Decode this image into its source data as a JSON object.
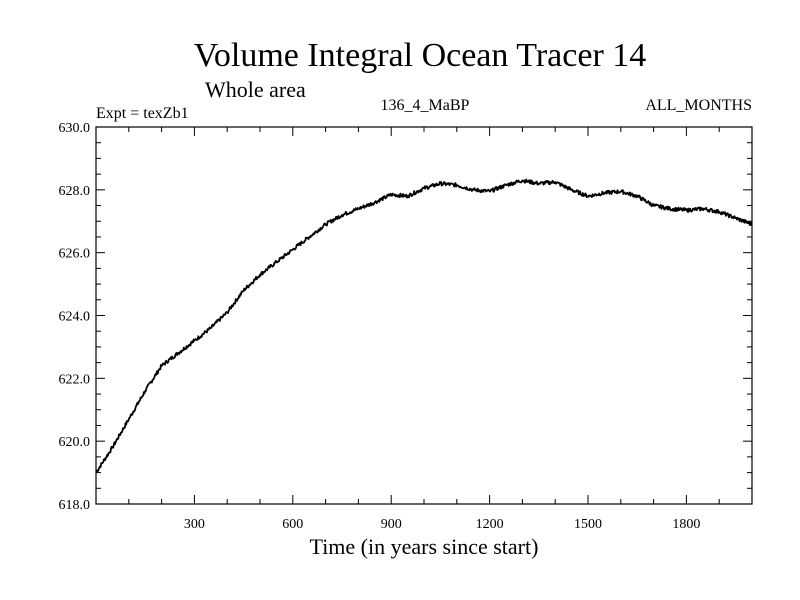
{
  "chart_data": {
    "type": "line",
    "title": "Volume Integral Ocean Tracer 14",
    "subtitle": "Whole area",
    "annotations": {
      "left": "Expt = texZb1",
      "center": "136_4_MaBP",
      "right": "ALL_MONTHS"
    },
    "xlabel": "Time (in years since start)",
    "ylabel": "",
    "xlim": [
      0,
      2000
    ],
    "ylim": [
      618.0,
      630.0
    ],
    "x_ticks": [
      300,
      600,
      900,
      1200,
      1500,
      1800
    ],
    "x_tick_labels": [
      "300",
      "600",
      "900",
      "1200",
      "1500",
      "1800"
    ],
    "y_ticks": [
      618,
      620,
      622,
      624,
      626,
      628,
      630
    ],
    "y_tick_labels": [
      "618.0",
      "620.0",
      "622.0",
      "624.0",
      "626.0",
      "628.0",
      "630.0"
    ],
    "grid": false,
    "line_color": "#000000",
    "series": [
      {
        "x": [
          0,
          50,
          100,
          150,
          200,
          250,
          300,
          350,
          400,
          450,
          500,
          550,
          600,
          650,
          700,
          750,
          800,
          850,
          900,
          950,
          1000,
          1050,
          1100,
          1150,
          1200,
          1250,
          1300,
          1350,
          1400,
          1450,
          1500,
          1550,
          1600,
          1650,
          1700,
          1750,
          1800,
          1850,
          1900,
          1950,
          2000
        ],
        "y": [
          619.0,
          619.8,
          620.7,
          621.6,
          622.4,
          622.8,
          623.2,
          623.6,
          624.1,
          624.8,
          625.3,
          625.7,
          626.1,
          626.5,
          626.9,
          627.2,
          627.4,
          627.6,
          627.85,
          627.8,
          628.05,
          628.2,
          628.15,
          628.0,
          627.95,
          628.15,
          628.3,
          628.2,
          628.25,
          628.0,
          627.8,
          627.9,
          627.95,
          627.8,
          627.5,
          627.4,
          627.35,
          627.4,
          627.3,
          627.1,
          626.9
        ]
      }
    ]
  }
}
